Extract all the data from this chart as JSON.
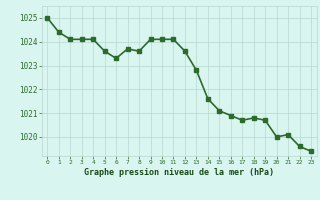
{
  "x": [
    0,
    1,
    2,
    3,
    4,
    5,
    6,
    7,
    8,
    9,
    10,
    11,
    12,
    13,
    14,
    15,
    16,
    17,
    18,
    19,
    20,
    21,
    22,
    23
  ],
  "y": [
    1025.0,
    1024.4,
    1024.1,
    1024.1,
    1024.1,
    1023.6,
    1023.3,
    1023.7,
    1023.6,
    1024.1,
    1024.1,
    1024.1,
    1023.6,
    1022.8,
    1021.6,
    1021.1,
    1020.9,
    1020.7,
    1020.8,
    1020.7,
    1020.0,
    1020.1,
    1019.6,
    1019.4
  ],
  "line_color": "#2d6b2d",
  "marker": "s",
  "marker_size": 2.2,
  "bg_color": "#d9f5f0",
  "grid_color": "#b8d8d0",
  "xlabel": "Graphe pression niveau de la mer (hPa)",
  "xlabel_color": "#1a4a1a",
  "ylabel_ticks": [
    1020,
    1021,
    1022,
    1023,
    1024,
    1025
  ],
  "ylim": [
    1019.2,
    1025.5
  ],
  "xlim": [
    -0.5,
    23.5
  ],
  "tick_color": "#2d6b2d",
  "axis_label_color": "#1a4a1a",
  "line_width": 1.2
}
